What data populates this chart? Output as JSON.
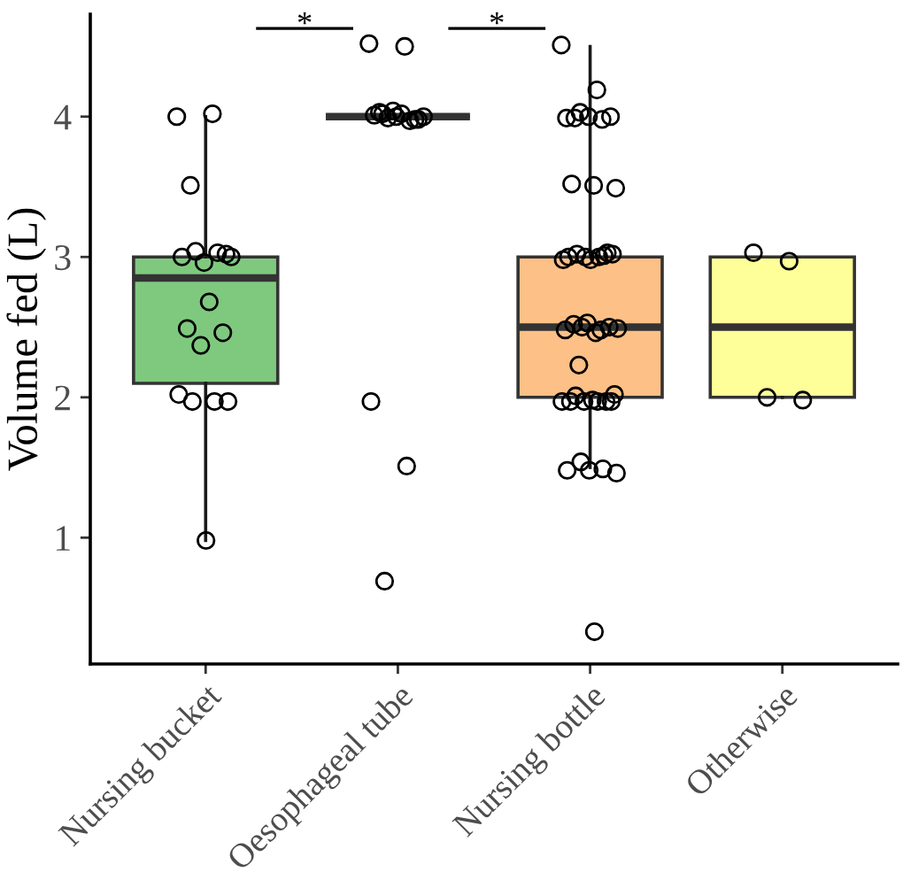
{
  "chart_data": {
    "type": "box",
    "ylabel": "Volume fed (L)",
    "categories": [
      "Nursing bucket",
      "Oesophageal tube",
      "Nursing bottle",
      "Otherwise"
    ],
    "colors": [
      "#7fc97f",
      "#333333",
      "#fdc086",
      "#ffff99"
    ],
    "boxes": [
      {
        "low": 0.98,
        "q1": 2.1,
        "median": 2.85,
        "q3": 3.0,
        "high": 4.0
      },
      {
        "low": 4.0,
        "q1": 4.0,
        "median": 4.0,
        "q3": 4.0,
        "high": 4.0
      },
      {
        "low": 1.5,
        "q1": 2.0,
        "median": 2.5,
        "q3": 3.0,
        "high": 4.5
      },
      {
        "low": 2.0,
        "q1": 2.0,
        "median": 2.5,
        "q3": 3.0,
        "high": 3.0
      }
    ],
    "ylim": [
      0.1,
      4.73
    ],
    "yticks": [
      1,
      2,
      3,
      4
    ],
    "marker": "circle",
    "annotations": [
      "*",
      "*"
    ],
    "series": [
      {
        "type": "scatter",
        "color": "#000000",
        "x": [
          "Nursing bucket",
          "Nursing bucket",
          "Nursing bucket",
          "Nursing bucket",
          "Nursing bucket",
          "Nursing bucket",
          "Nursing bucket",
          "Nursing bucket",
          "Nursing bucket",
          "Nursing bucket",
          "Nursing bucket",
          "Nursing bucket",
          "Nursing bucket",
          "Nursing bucket",
          "Nursing bucket",
          "Nursing bucket",
          "Nursing bucket",
          "Nursing bucket",
          "Oesophageal tube",
          "Oesophageal tube",
          "Oesophageal tube",
          "Oesophageal tube",
          "Oesophageal tube",
          "Oesophageal tube",
          "Oesophageal tube",
          "Oesophageal tube",
          "Oesophageal tube",
          "Oesophageal tube",
          "Oesophageal tube",
          "Oesophageal tube",
          "Oesophageal tube",
          "Oesophageal tube",
          "Oesophageal tube",
          "Oesophageal tube",
          "Nursing bottle",
          "Nursing bottle",
          "Nursing bottle",
          "Nursing bottle",
          "Nursing bottle",
          "Nursing bottle",
          "Nursing bottle",
          "Nursing bottle",
          "Nursing bottle",
          "Nursing bottle",
          "Nursing bottle",
          "Nursing bottle",
          "Nursing bottle",
          "Nursing bottle",
          "Nursing bottle",
          "Nursing bottle",
          "Nursing bottle",
          "Nursing bottle",
          "Nursing bottle",
          "Nursing bottle",
          "Nursing bottle",
          "Nursing bottle",
          "Nursing bottle",
          "Nursing bottle",
          "Nursing bottle",
          "Nursing bottle",
          "Nursing bottle",
          "Nursing bottle",
          "Nursing bottle",
          "Nursing bottle",
          "Nursing bottle",
          "Nursing bottle",
          "Nursing bottle",
          "Nursing bottle",
          "Nursing bottle",
          "Nursing bottle",
          "Nursing bottle",
          "Nursing bottle",
          "Nursing bottle",
          "Nursing bottle",
          "Nursing bottle",
          "Nursing bottle",
          "Nursing bottle",
          "Nursing bottle",
          "Otherwise",
          "Otherwise",
          "Otherwise",
          "Otherwise"
        ],
        "values": [
          4.0,
          4.02,
          3.51,
          3.02,
          2.96,
          3.0,
          3.03,
          3.04,
          3.0,
          2.68,
          2.49,
          2.46,
          2.37,
          2.02,
          1.97,
          1.97,
          1.97,
          0.98,
          4.52,
          4.5,
          4.02,
          3.98,
          4.0,
          4.01,
          3.97,
          3.99,
          4.0,
          4.02,
          4.03,
          3.98,
          4.04,
          1.97,
          1.51,
          0.69,
          4.51,
          4.19,
          3.99,
          4.0,
          4.0,
          3.99,
          3.98,
          4.03,
          3.49,
          3.51,
          3.52,
          3.03,
          3.0,
          2.98,
          3.0,
          3.02,
          3.02,
          2.98,
          3.0,
          3.01,
          2.5,
          2.49,
          2.46,
          2.52,
          2.5,
          2.53,
          2.48,
          2.48,
          2.23,
          2.02,
          1.98,
          1.97,
          1.97,
          1.97,
          1.97,
          1.97,
          2.01,
          1.97,
          1.48,
          1.48,
          1.49,
          1.54,
          1.46,
          0.33,
          3.03,
          2.97,
          2.0,
          1.98
        ]
      }
    ]
  }
}
